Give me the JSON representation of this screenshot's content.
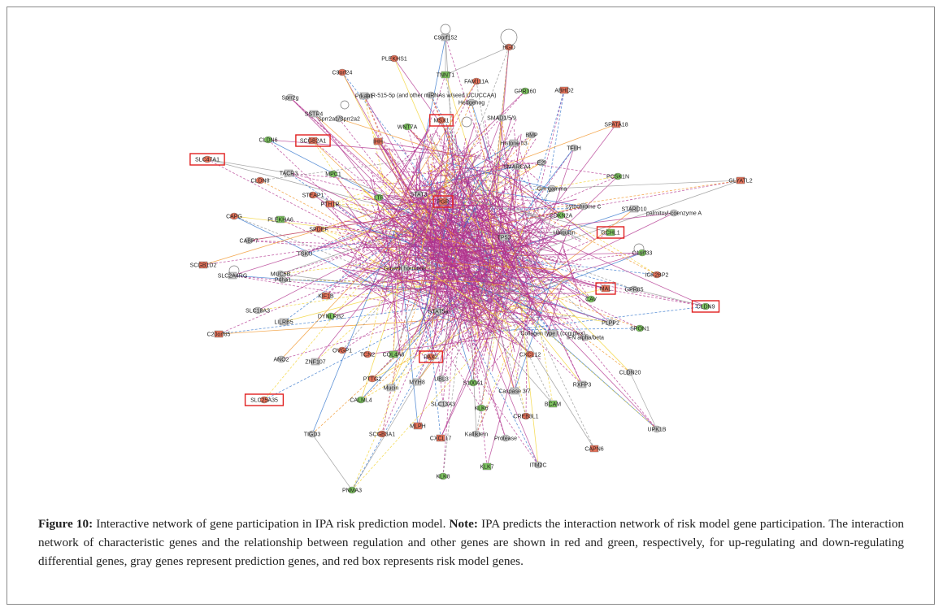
{
  "caption": {
    "figure_label": "Figure 10:",
    "title_text": "Interactive network of gene participation in IPA risk prediction model.",
    "note_label": "Note:",
    "note_text": "IPA predicts the interaction network of risk model gene participation. The interaction network of characteristic genes and the relationship between regulation and other genes are shown in red and green, respectively, for up-regulating and down-regulating differential genes, gray genes represent prediction genes, and red box represents risk model genes."
  },
  "colors": {
    "up_regulated": "#e8735a",
    "down_regulated": "#7cc35e",
    "predicted": "#c8c8c8",
    "complex_blue": "#6f9fd8",
    "risk_box": "#e02020",
    "edge_magenta": "#b0308c",
    "edge_orange": "#f09020",
    "edge_blue": "#2a6fc9",
    "edge_yellow": "#f2d22a",
    "edge_gray": "#8c8c8c"
  },
  "network": {
    "risk_model_genes": [
      "SLC47A1",
      "SCGB2A1",
      "MSX1",
      "PGR",
      "GCHL1",
      "MAL",
      "CLDN9",
      "PAX2",
      "SLC25A35"
    ],
    "nodes": [
      {
        "label": "C9orf152",
        "reg": "predicted"
      },
      {
        "label": "HGD",
        "reg": "up"
      },
      {
        "label": "PLEKHS1",
        "reg": "up"
      },
      {
        "label": "TNNT1",
        "reg": "down"
      },
      {
        "label": "FAM111A",
        "reg": "up"
      },
      {
        "label": "C9orf24",
        "reg": "up"
      },
      {
        "label": "ABHD2",
        "reg": "up"
      },
      {
        "label": "GPR160",
        "reg": "down"
      },
      {
        "label": "Sprr2g",
        "reg": "predicted"
      },
      {
        "label": "Prkaa1",
        "reg": "predicted"
      },
      {
        "label": "miR-515-5p (and other miRNAs w/seed UCUCCAA)",
        "reg": "predicted"
      },
      {
        "label": "Hedgehog",
        "reg": "predicted"
      },
      {
        "label": "SSTR4",
        "reg": "predicted"
      },
      {
        "label": "Sprr2a1/Sprr2a2",
        "reg": "predicted"
      },
      {
        "label": "SMAD1/5/9",
        "reg": "predicted"
      },
      {
        "label": "SPATA18",
        "reg": "up"
      },
      {
        "label": "MSX1",
        "reg": "up"
      },
      {
        "label": "CLDN6",
        "reg": "down"
      },
      {
        "label": "SCGB2A1",
        "reg": "up"
      },
      {
        "label": "WNT7A",
        "reg": "down"
      },
      {
        "label": "BMP",
        "reg": "predicted"
      },
      {
        "label": "Histone h3",
        "reg": "predicted"
      },
      {
        "label": "TFIIH",
        "reg": "predicted"
      },
      {
        "label": "SLC47A1",
        "reg": "up"
      },
      {
        "label": "IHH",
        "reg": "up"
      },
      {
        "label": "SMARCA4",
        "reg": "predicted"
      },
      {
        "label": "E2f",
        "reg": "predicted"
      },
      {
        "label": "TACR3",
        "reg": "predicted"
      },
      {
        "label": "MPC1",
        "reg": "down"
      },
      {
        "label": "PCSK1N",
        "reg": "down"
      },
      {
        "label": "GLYATL2",
        "reg": "up"
      },
      {
        "label": "CLDN8",
        "reg": "up"
      },
      {
        "label": "STEAP1",
        "reg": "up"
      },
      {
        "label": "PTH1R",
        "reg": "up"
      },
      {
        "label": "LTF",
        "reg": "down"
      },
      {
        "label": "STAT3",
        "reg": "predicted"
      },
      {
        "label": "PGR",
        "reg": "up"
      },
      {
        "label": "Gm gamma",
        "reg": "predicted"
      },
      {
        "label": "cytochrome C",
        "reg": "predicted"
      },
      {
        "label": "STARD10",
        "reg": "predicted"
      },
      {
        "label": "palmitoyl-coenzyme A",
        "reg": "predicted"
      },
      {
        "label": "CAPG",
        "reg": "up"
      },
      {
        "label": "PLEKHA6",
        "reg": "down"
      },
      {
        "label": "CDKN2A",
        "reg": "down"
      },
      {
        "label": "SPDEF",
        "reg": "up"
      },
      {
        "label": "GCHL1",
        "reg": "down"
      },
      {
        "label": "Ubiquitin",
        "reg": "predicted"
      },
      {
        "label": "CABP7",
        "reg": "predicted"
      },
      {
        "label": "TP53",
        "reg": "predicted"
      },
      {
        "label": "C1orf33",
        "reg": "down"
      },
      {
        "label": "TSKU",
        "reg": "predicted"
      },
      {
        "label": "SCGB1D2",
        "reg": "up"
      },
      {
        "label": "Growth hormone",
        "reg": "predicted"
      },
      {
        "label": "IGF2BP2",
        "reg": "up"
      },
      {
        "label": "SLC2A4RG",
        "reg": "predicted"
      },
      {
        "label": "MUC5B",
        "reg": "predicted"
      },
      {
        "label": "P4ha1",
        "reg": "predicted"
      },
      {
        "label": "MAL",
        "reg": "up"
      },
      {
        "label": "GPR85",
        "reg": "predicted"
      },
      {
        "label": "CLDN9",
        "reg": "down"
      },
      {
        "label": "KIF1B",
        "reg": "up"
      },
      {
        "label": "SLC18A3",
        "reg": "predicted"
      },
      {
        "label": "DYNLRB2",
        "reg": "down"
      },
      {
        "label": "LILRB5",
        "reg": "predicted"
      },
      {
        "label": "CAV",
        "reg": "down"
      },
      {
        "label": "STAT5a",
        "reg": "predicted"
      },
      {
        "label": "C20orf85",
        "reg": "up"
      },
      {
        "label": "PLPP2",
        "reg": "predicted"
      },
      {
        "label": "SPON1",
        "reg": "down"
      },
      {
        "label": "Collagen type I (complex)",
        "reg": "predicted"
      },
      {
        "label": "IFN alpha/beta",
        "reg": "predicted"
      },
      {
        "label": "ANO2",
        "reg": "predicted"
      },
      {
        "label": "ZNF107",
        "reg": "predicted"
      },
      {
        "label": "OVGP1",
        "reg": "up"
      },
      {
        "label": "TCN2",
        "reg": "up"
      },
      {
        "label": "COL4A6",
        "reg": "down"
      },
      {
        "label": "PAX2",
        "reg": "up"
      },
      {
        "label": "CXCL12",
        "reg": "up"
      },
      {
        "label": "RXFP3",
        "reg": "predicted"
      },
      {
        "label": "CLDN20",
        "reg": "predicted"
      },
      {
        "label": "PTTG2",
        "reg": "up"
      },
      {
        "label": "MYH8",
        "reg": "predicted"
      },
      {
        "label": "UBL3",
        "reg": "predicted"
      },
      {
        "label": "S100A1",
        "reg": "down"
      },
      {
        "label": "Caspase 3/7",
        "reg": "predicted"
      },
      {
        "label": "SLC25A35",
        "reg": "up"
      },
      {
        "label": "CALML4",
        "reg": "down"
      },
      {
        "label": "Mucin",
        "reg": "predicted"
      },
      {
        "label": "SLC13A3",
        "reg": "predicted"
      },
      {
        "label": "KLK6",
        "reg": "down"
      },
      {
        "label": "BCAM",
        "reg": "down"
      },
      {
        "label": "UPK1B",
        "reg": "predicted"
      },
      {
        "label": "CREB3L1",
        "reg": "up"
      },
      {
        "label": "MLPH",
        "reg": "up"
      },
      {
        "label": "TIGD3",
        "reg": "predicted"
      },
      {
        "label": "SCGB3A1",
        "reg": "up"
      },
      {
        "label": "CXCL17",
        "reg": "up"
      },
      {
        "label": "Kallikrein",
        "reg": "predicted"
      },
      {
        "label": "Protease",
        "reg": "predicted"
      },
      {
        "label": "CAPN6",
        "reg": "up"
      },
      {
        "label": "ITM2C",
        "reg": "predicted"
      },
      {
        "label": "KLK8",
        "reg": "down"
      },
      {
        "label": "KLK7",
        "reg": "down"
      },
      {
        "label": "PNMA3",
        "reg": "down"
      }
    ]
  }
}
